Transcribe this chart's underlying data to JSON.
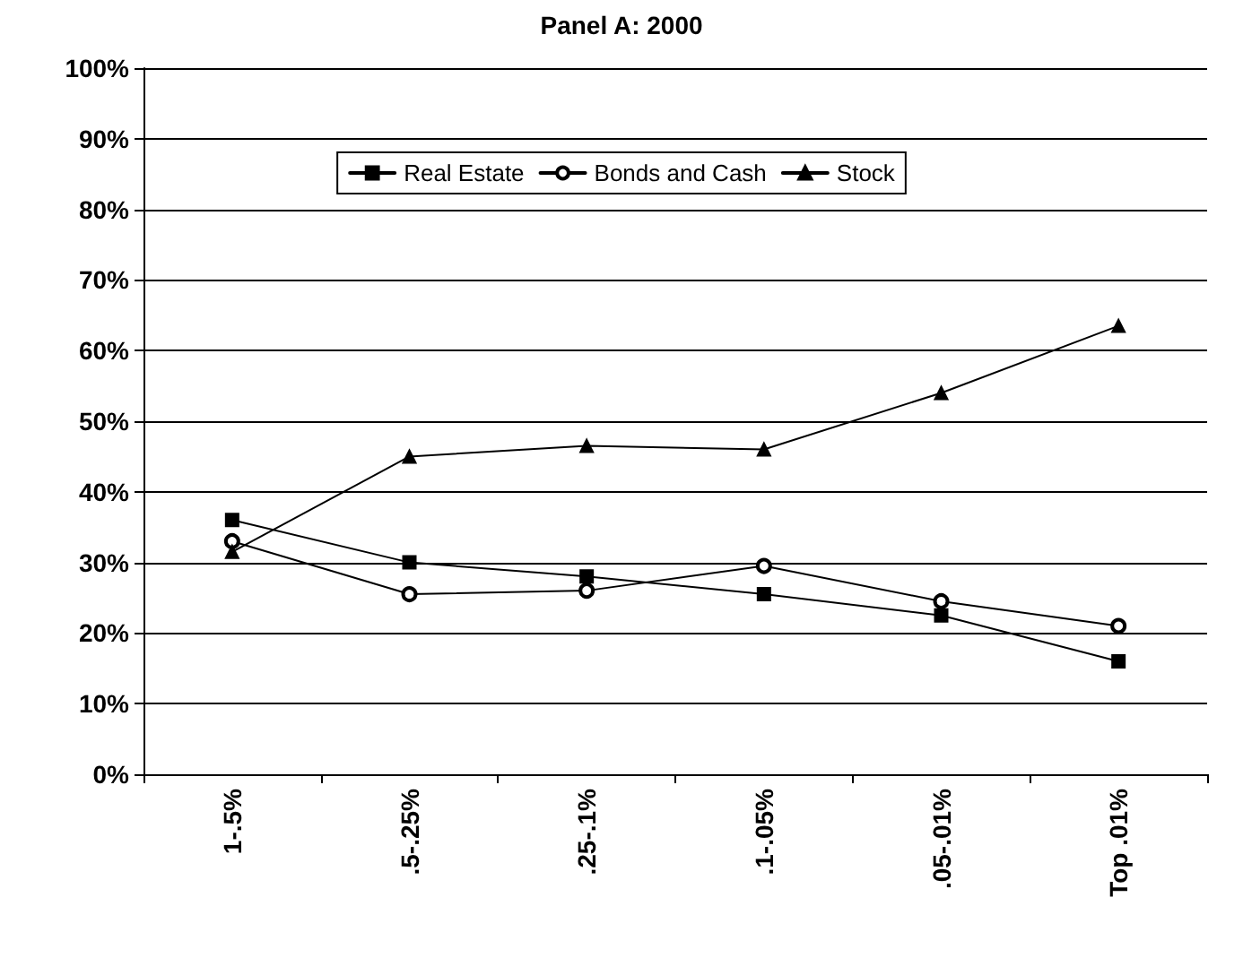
{
  "chart_data": {
    "type": "line",
    "title": "Panel A: 2000",
    "categories": [
      "1-.5%",
      ".5-.25%",
      ".25-.1%",
      ".1-.05%",
      ".05-.01%",
      "Top .01%"
    ],
    "series": [
      {
        "name": "Real Estate",
        "color": "#000000",
        "marker": "square",
        "values": [
          36,
          30,
          28,
          25.5,
          22.5,
          16
        ]
      },
      {
        "name": "Bonds and Cash",
        "color": "#000000",
        "marker": "circle",
        "values": [
          33,
          25.5,
          26,
          29.5,
          24.5,
          21
        ]
      },
      {
        "name": "Stock",
        "color": "#000000",
        "marker": "triangle",
        "values": [
          31.5,
          45,
          46.5,
          46,
          54,
          63.5
        ]
      }
    ],
    "ylim": [
      0,
      100
    ],
    "yticks": [
      {
        "value": 0,
        "label": "0%"
      },
      {
        "value": 10,
        "label": "10%"
      },
      {
        "value": 20,
        "label": "20%"
      },
      {
        "value": 30,
        "label": "30%"
      },
      {
        "value": 40,
        "label": "40%"
      },
      {
        "value": 50,
        "label": "50%"
      },
      {
        "value": 60,
        "label": "60%"
      },
      {
        "value": 70,
        "label": "70%"
      },
      {
        "value": 80,
        "label": "80%"
      },
      {
        "value": 90,
        "label": "90%"
      },
      {
        "value": 100,
        "label": "100%"
      }
    ],
    "grid": "y",
    "legend": "top",
    "line_style": "solid"
  }
}
